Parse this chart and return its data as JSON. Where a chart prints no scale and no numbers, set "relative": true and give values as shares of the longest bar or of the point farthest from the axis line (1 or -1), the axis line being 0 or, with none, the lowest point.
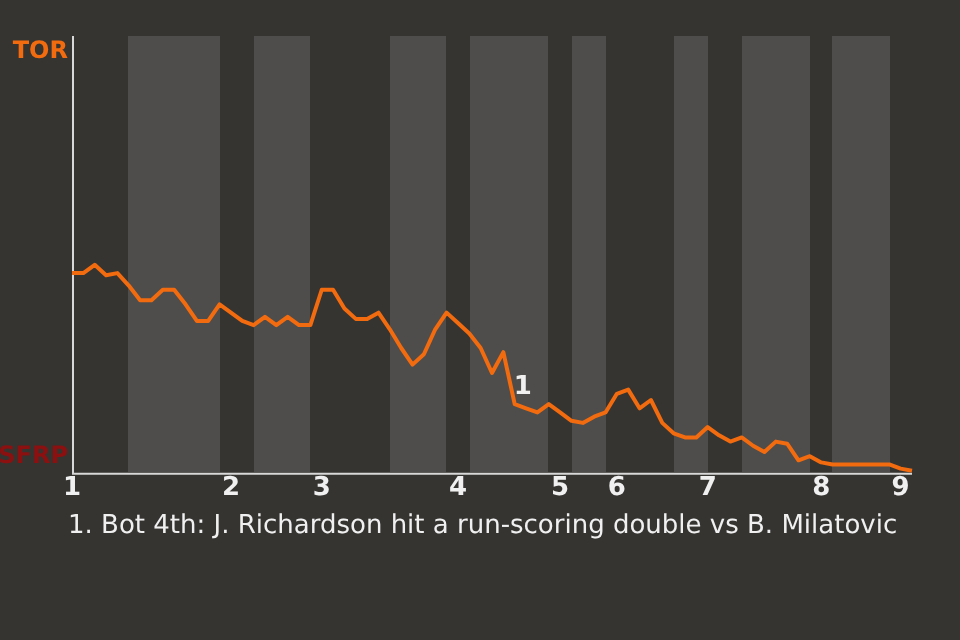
{
  "chart_data": {
    "type": "line",
    "categories": [
      "1",
      null,
      null,
      null,
      null,
      null,
      null,
      null,
      null,
      null,
      null,
      null,
      null,
      null,
      "2",
      null,
      null,
      null,
      null,
      null,
      null,
      null,
      "3",
      null,
      null,
      null,
      null,
      null,
      null,
      null,
      null,
      null,
      null,
      null,
      "4",
      null,
      null,
      null,
      null,
      null,
      null,
      null,
      null,
      "5",
      null,
      null,
      null,
      null,
      "6",
      null,
      null,
      null,
      null,
      null,
      null,
      null,
      "7",
      null,
      null,
      null,
      null,
      null,
      null,
      null,
      null,
      null,
      "8",
      null,
      null,
      null,
      null,
      null,
      null,
      "9",
      null
    ],
    "relative": true,
    "series": [
      {
        "color": "#f26b0f",
        "values": [
          0.96,
          0.96,
          1,
          0.95,
          0.96,
          0.9,
          0.83,
          0.83,
          0.88,
          0.88,
          0.81,
          0.73,
          0.73,
          0.81,
          0.77,
          0.73,
          0.71,
          0.75,
          0.71,
          0.75,
          0.71,
          0.71,
          0.88,
          0.88,
          0.79,
          0.74,
          0.74,
          0.77,
          0.69,
          0.6,
          0.52,
          0.57,
          0.69,
          0.77,
          0.72,
          0.67,
          0.6,
          0.48,
          0.58,
          0.33,
          0.31,
          0.29,
          0.33,
          0.29,
          0.25,
          0.24,
          0.27,
          0.29,
          0.38,
          0.4,
          0.31,
          0.35,
          0.24,
          0.19,
          0.17,
          0.17,
          0.22,
          0.18,
          0.15,
          0.17,
          0.13,
          0.1,
          0.15,
          0.14,
          0.06,
          0.08,
          0.05,
          0.04,
          0.04,
          0.04,
          0.04,
          0.04,
          0.04,
          0.02,
          0.01
        ]
      }
    ],
    "annotations": [
      "TOR",
      "SFRP",
      "1",
      "1. Bot 4th: J. Richardson hit a run-scoring double vs B. Milatovic"
    ]
  }
}
